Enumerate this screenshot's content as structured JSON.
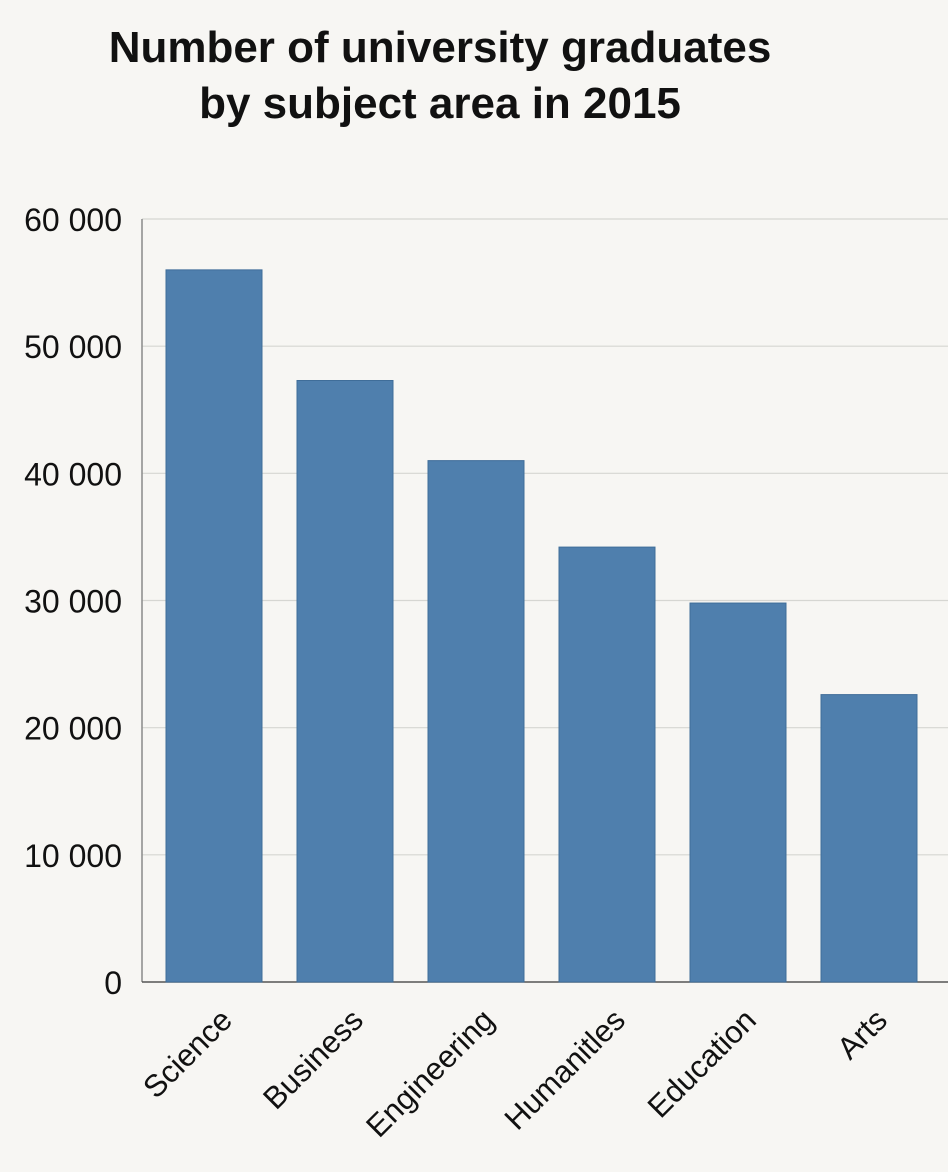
{
  "chart_data": {
    "type": "bar",
    "title_lines": [
      "Number of university graduates",
      "by subject area in 2015"
    ],
    "categories": [
      "Science",
      "Business",
      "Engineering",
      "Humanitles",
      "Education",
      "Arts"
    ],
    "values": [
      56000,
      47300,
      41000,
      34200,
      29800,
      22600
    ],
    "yticks": [
      0,
      10000,
      20000,
      30000,
      40000,
      50000,
      60000
    ],
    "ytick_labels": [
      "0",
      "10 000",
      "20 000",
      "30 000",
      "40 000",
      "50 000",
      "60 000"
    ],
    "ylim": [
      0,
      60000
    ],
    "xlabel": "",
    "ylabel": "",
    "grid": true,
    "bar_color": "#4f7fad"
  }
}
